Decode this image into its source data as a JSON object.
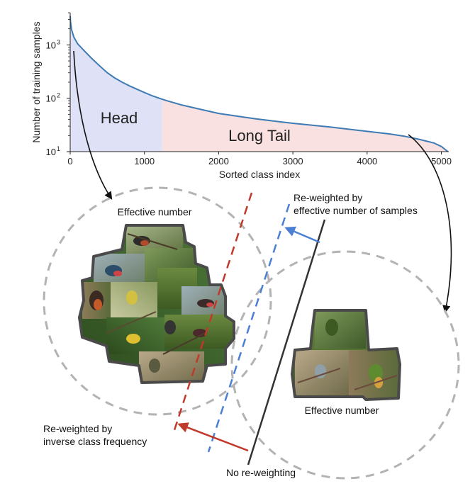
{
  "chart_data": {
    "type": "area",
    "xlabel": "Sorted class index",
    "ylabel": "Number of training samples",
    "xlim": [
      0,
      5100
    ],
    "ylim": [
      10,
      4000
    ],
    "log_y": true,
    "x_ticks": [
      0,
      1000,
      2000,
      3000,
      4000,
      5000
    ],
    "x_tick_labels": [
      "0",
      "1000",
      "2000",
      "3000",
      "4000",
      "5000"
    ],
    "y_ticks": [
      10,
      100,
      1000
    ],
    "y_tick_labels": [
      "10",
      "10",
      "10"
    ],
    "y_tick_exponents": [
      "1",
      "2",
      "3"
    ],
    "series": [
      {
        "x": [
          0,
          5,
          20,
          50,
          100,
          200,
          300,
          400,
          500,
          600,
          700,
          800,
          900,
          1000,
          1100,
          1200,
          1300,
          1500,
          1800,
          2000,
          2500,
          3000,
          3500,
          4000,
          4300,
          4500,
          4700,
          4900,
          5000,
          5089
        ],
        "y": [
          3500,
          2700,
          1900,
          1400,
          1050,
          750,
          540,
          400,
          300,
          240,
          200,
          170,
          148,
          128,
          112,
          100,
          90,
          75,
          60,
          52,
          41,
          34,
          29,
          24,
          21.5,
          19.5,
          17,
          14.5,
          12.5,
          10
        ]
      }
    ],
    "regions": [
      {
        "label": "Head",
        "x_start": 0,
        "x_end": 1240,
        "color": "#dfe2f6"
      },
      {
        "label": "Long Tail",
        "x_start": 1240,
        "x_end": 5089,
        "color": "#f8e1e0"
      }
    ],
    "line_color": "#3e7bb5"
  },
  "diagram": {
    "left_cluster_label": "Effective number",
    "right_cluster_label": "Effective number",
    "blue_label_line1": "Re-weighted by",
    "blue_label_line2": "effective number of samples",
    "red_label_line1": "Re-weighted by",
    "red_label_line2": "inverse class frequency",
    "black_label": "No re-weighting",
    "colors": {
      "red": "#c0392b",
      "blue": "#4a7fd4",
      "dark": "#333333",
      "circle": "#b3b3b3"
    }
  }
}
